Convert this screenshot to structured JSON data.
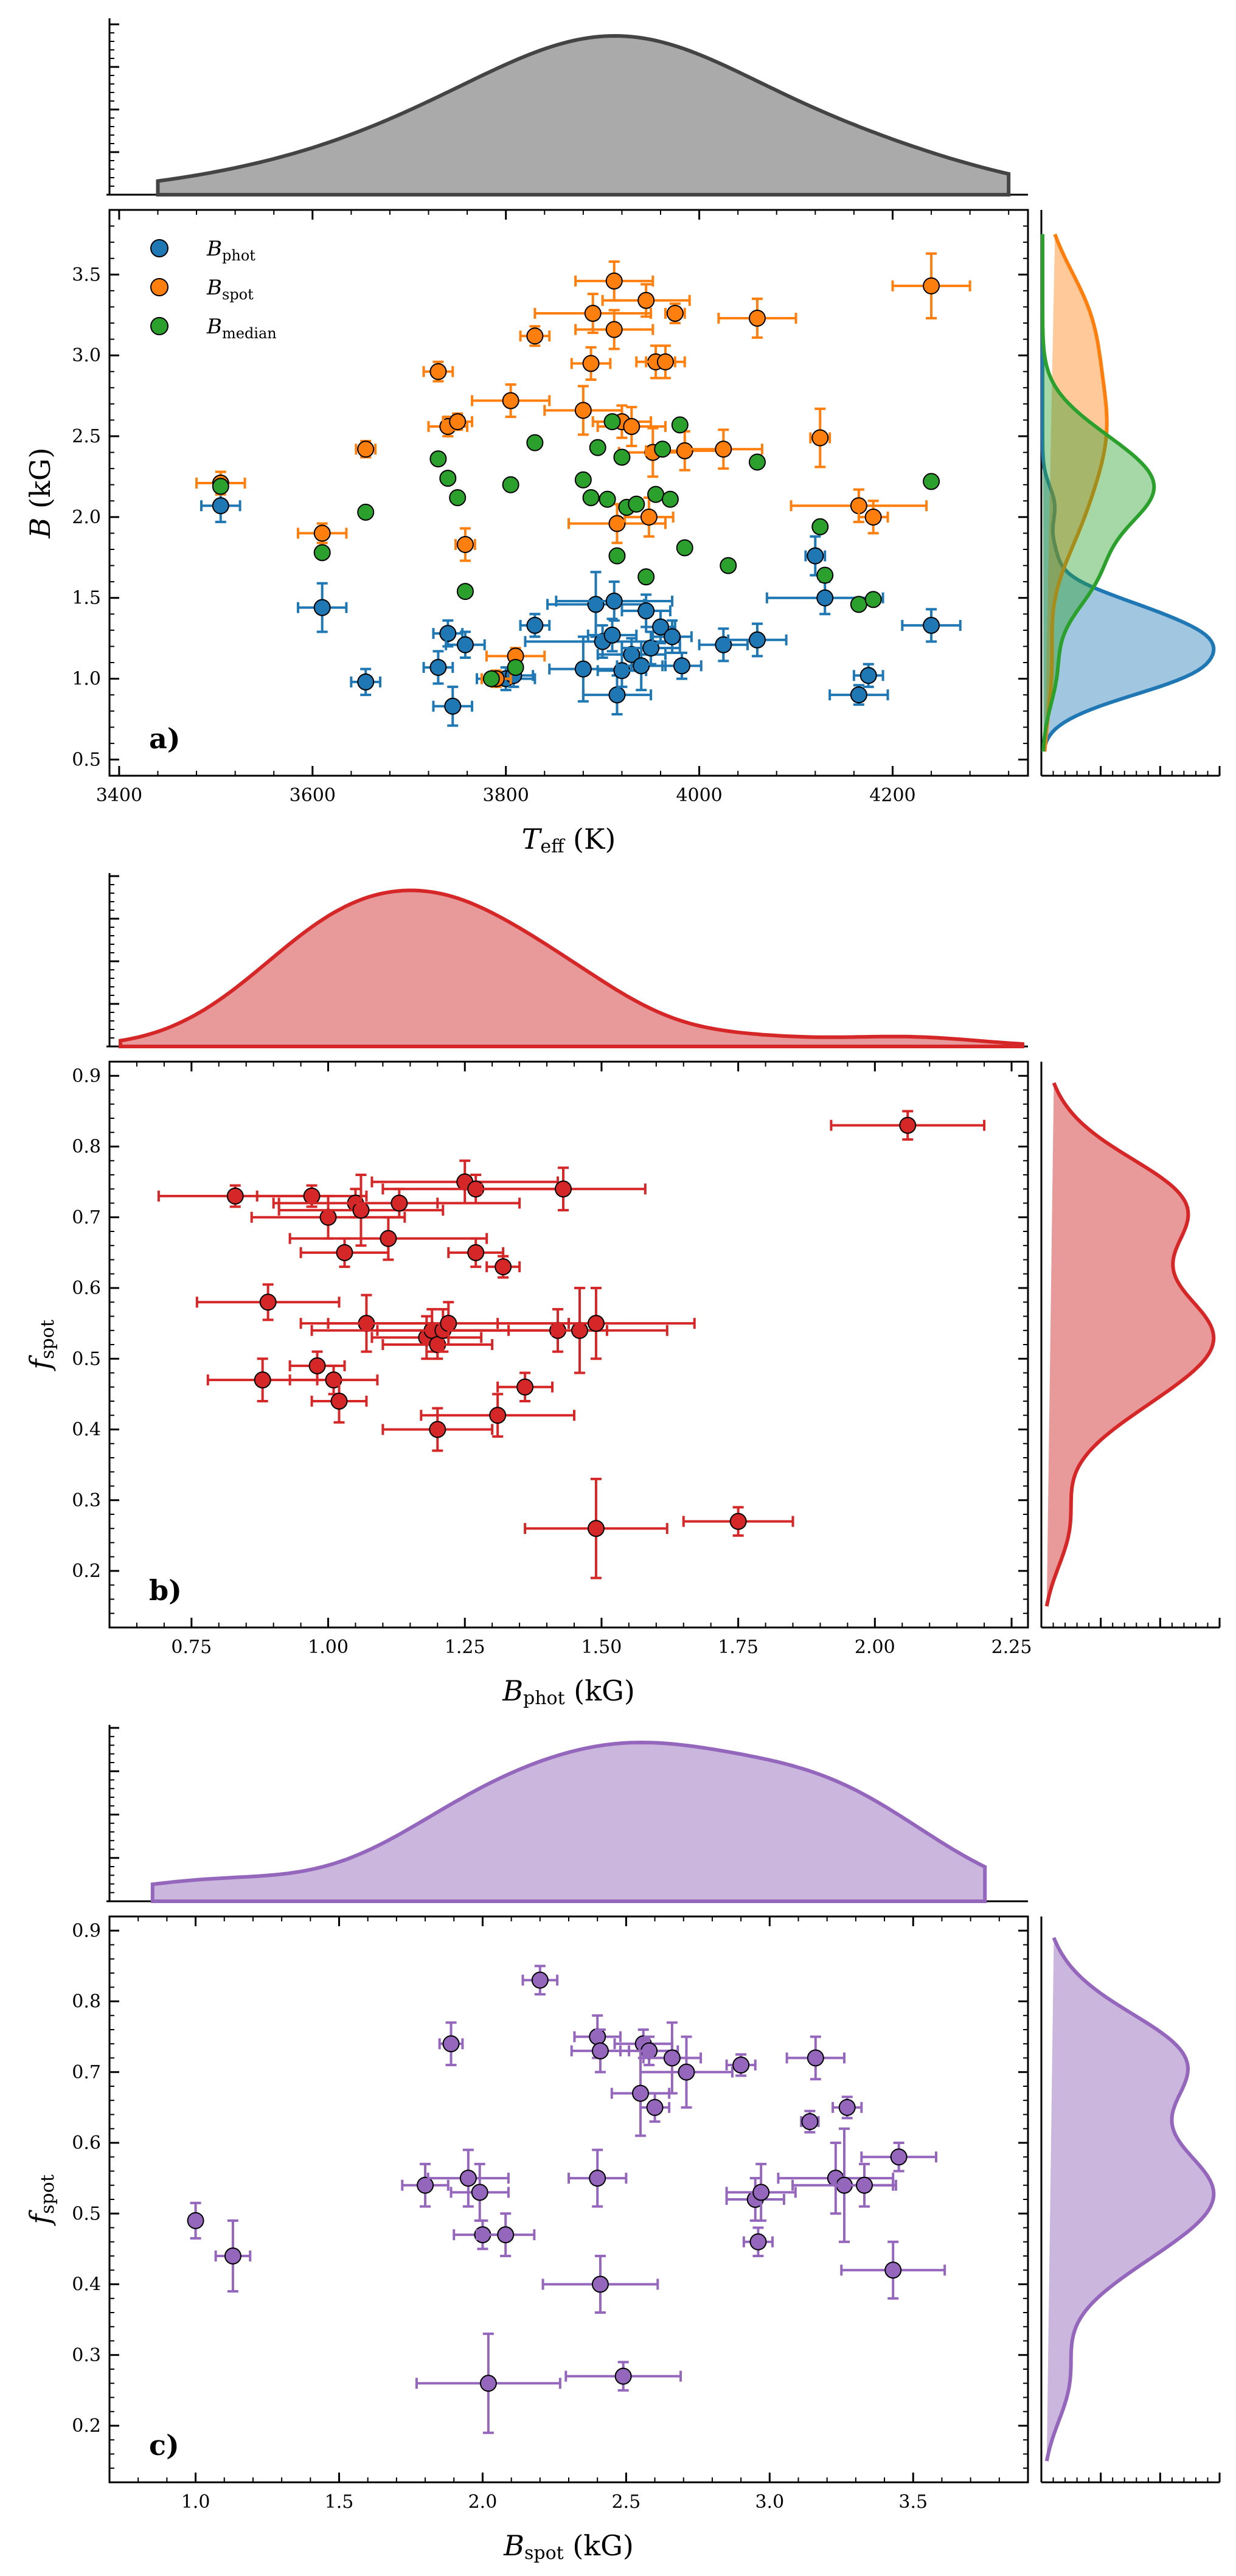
{
  "colors": {
    "phot": "#1f77b4",
    "spot": "#ff7f0e",
    "median": "#2ca02c",
    "red": "#d62728",
    "purple": "#9467bd",
    "grey": "#555555"
  },
  "chart_data": [
    {
      "id": "a",
      "type": "scatter",
      "panel_label": "a)",
      "xlabel": "T_eff (K)",
      "xlabel_main": "T",
      "xlabel_sub": "eff",
      "xlabel_unit": " (K)",
      "ylabel": "B (kG)",
      "ylabel_main": "B",
      "ylabel_unit": " (kG)",
      "xlim": [
        3390,
        4340
      ],
      "ylim": [
        0.4,
        3.9
      ],
      "xticks": [
        3400,
        3600,
        3800,
        4000,
        4200
      ],
      "yticks": [
        0.5,
        1.0,
        1.5,
        2.0,
        2.5,
        3.0,
        3.5
      ],
      "xtick_labels": [
        "3400",
        "3600",
        "3800",
        "4000",
        "4200"
      ],
      "ytick_labels": [
        "0.5",
        "1.0",
        "1.5",
        "2.0",
        "2.5",
        "3.0",
        "3.5"
      ],
      "legend": [
        {
          "main": "B",
          "sub": "phot",
          "color": "#1f77b4"
        },
        {
          "main": "B",
          "sub": "spot",
          "color": "#ff7f0e"
        },
        {
          "main": "B",
          "sub": "median",
          "color": "#2ca02c"
        }
      ],
      "series": [
        {
          "name": "B_phot",
          "color": "#1f77b4",
          "points": [
            [
              3505,
              2.07,
              20,
              0.1
            ],
            [
              3610,
              1.44,
              25,
              0.15
            ],
            [
              3655,
              0.98,
              15,
              0.08
            ],
            [
              3730,
              1.07,
              15,
              0.1
            ],
            [
              3740,
              1.28,
              15,
              0.08
            ],
            [
              3745,
              0.83,
              20,
              0.12
            ],
            [
              3758,
              1.21,
              20,
              0.08
            ],
            [
              3800,
              1.0,
              30,
              0.07
            ],
            [
              3808,
              1.02,
              20,
              0.07
            ],
            [
              3830,
              1.33,
              15,
              0.07
            ],
            [
              3880,
              1.06,
              35,
              0.2
            ],
            [
              3893,
              1.46,
              50,
              0.2
            ],
            [
              3900,
              1.23,
              80,
              0.1
            ],
            [
              3910,
              1.27,
              25,
              0.1
            ],
            [
              3912,
              1.48,
              60,
              0.12
            ],
            [
              3915,
              0.9,
              35,
              0.12
            ],
            [
              3920,
              1.05,
              25,
              0.1
            ],
            [
              3930,
              1.15,
              35,
              0.1
            ],
            [
              3940,
              1.08,
              25,
              0.15
            ],
            [
              3945,
              1.42,
              25,
              0.1
            ],
            [
              3950,
              1.19,
              30,
              0.1
            ],
            [
              3960,
              1.32,
              15,
              0.1
            ],
            [
              3972,
              1.26,
              20,
              0.1
            ],
            [
              3982,
              1.08,
              20,
              0.08
            ],
            [
              4025,
              1.21,
              25,
              0.1
            ],
            [
              4060,
              1.24,
              30,
              0.1
            ],
            [
              4120,
              1.76,
              10,
              0.12
            ],
            [
              4130,
              1.5,
              60,
              0.1
            ],
            [
              4165,
              0.9,
              30,
              0.06
            ],
            [
              4175,
              1.02,
              15,
              0.07
            ],
            [
              4240,
              1.33,
              30,
              0.1
            ]
          ]
        },
        {
          "name": "B_spot",
          "color": "#ff7f0e",
          "points": [
            [
              3505,
              2.21,
              25,
              0.07
            ],
            [
              3610,
              1.9,
              25,
              0.06
            ],
            [
              3655,
              2.42,
              10,
              0.05
            ],
            [
              3730,
              2.9,
              15,
              0.06
            ],
            [
              3740,
              2.56,
              20,
              0.06
            ],
            [
              3750,
              2.59,
              15,
              0.05
            ],
            [
              3758,
              1.83,
              10,
              0.1
            ],
            [
              3790,
              1.0,
              15,
              0.05
            ],
            [
              3810,
              1.14,
              30,
              0.05
            ],
            [
              3805,
              2.72,
              40,
              0.1
            ],
            [
              3830,
              3.12,
              15,
              0.06
            ],
            [
              3880,
              2.66,
              40,
              0.15
            ],
            [
              3888,
              2.95,
              20,
              0.1
            ],
            [
              3890,
              3.26,
              60,
              0.12
            ],
            [
              3912,
              3.46,
              40,
              0.12
            ],
            [
              3912,
              3.16,
              40,
              0.12
            ],
            [
              3915,
              1.96,
              50,
              0.12
            ],
            [
              3920,
              2.59,
              30,
              0.1
            ],
            [
              3930,
              2.56,
              35,
              0.12
            ],
            [
              3945,
              3.34,
              45,
              0.1
            ],
            [
              3948,
              2.0,
              25,
              0.12
            ],
            [
              3952,
              2.4,
              35,
              0.15
            ],
            [
              3955,
              2.96,
              20,
              0.1
            ],
            [
              3965,
              2.96,
              20,
              0.1
            ],
            [
              3975,
              3.26,
              10,
              0.06
            ],
            [
              3985,
              2.41,
              40,
              0.12
            ],
            [
              4025,
              2.42,
              40,
              0.12
            ],
            [
              4060,
              3.23,
              40,
              0.12
            ],
            [
              4125,
              2.49,
              10,
              0.18
            ],
            [
              4165,
              2.07,
              70,
              0.1
            ],
            [
              4180,
              2.0,
              15,
              0.1
            ],
            [
              4240,
              3.43,
              40,
              0.2
            ]
          ]
        },
        {
          "name": "B_median",
          "color": "#2ca02c",
          "points": [
            [
              3505,
              2.19
            ],
            [
              3610,
              1.78
            ],
            [
              3655,
              2.03
            ],
            [
              3730,
              2.36
            ],
            [
              3740,
              2.24
            ],
            [
              3750,
              2.12
            ],
            [
              3758,
              1.54
            ],
            [
              3785,
              1.0
            ],
            [
              3805,
              2.2
            ],
            [
              3810,
              1.07
            ],
            [
              3830,
              2.46
            ],
            [
              3880,
              2.23
            ],
            [
              3888,
              2.12
            ],
            [
              3895,
              2.43
            ],
            [
              3905,
              2.11
            ],
            [
              3910,
              2.59
            ],
            [
              3915,
              1.76
            ],
            [
              3920,
              2.37
            ],
            [
              3925,
              2.06
            ],
            [
              3935,
              2.08
            ],
            [
              3945,
              1.63
            ],
            [
              3955,
              2.14
            ],
            [
              3962,
              2.42
            ],
            [
              3970,
              2.11
            ],
            [
              3980,
              2.57
            ],
            [
              3985,
              1.81
            ],
            [
              4030,
              1.7
            ],
            [
              4060,
              2.34
            ],
            [
              4125,
              1.94
            ],
            [
              4130,
              1.64
            ],
            [
              4165,
              1.46
            ],
            [
              4180,
              1.49
            ],
            [
              4240,
              2.22
            ]
          ]
        }
      ]
    },
    {
      "id": "b",
      "type": "scatter",
      "panel_label": "b)",
      "xlabel": "B_phot (kG)",
      "xlabel_main": "B",
      "xlabel_sub": "phot",
      "xlabel_unit": " (kG)",
      "ylabel": "f_spot",
      "ylabel_main": "f",
      "ylabel_sub": "spot",
      "xlim": [
        0.6,
        2.28
      ],
      "ylim": [
        0.12,
        0.92
      ],
      "xticks": [
        0.75,
        1.0,
        1.25,
        1.5,
        1.75,
        2.0,
        2.25
      ],
      "yticks": [
        0.2,
        0.3,
        0.4,
        0.5,
        0.6,
        0.7,
        0.8,
        0.9
      ],
      "xtick_labels": [
        "0.75",
        "1.00",
        "1.25",
        "1.50",
        "1.75",
        "2.00",
        "2.25"
      ],
      "ytick_labels": [
        "0.2",
        "0.3",
        "0.4",
        "0.5",
        "0.6",
        "0.7",
        "0.8",
        "0.9"
      ],
      "series": [
        {
          "name": "f_spot vs B_phot",
          "color": "#d62728",
          "points": [
            [
              2.06,
              0.83,
              0.14,
              0.02
            ],
            [
              0.83,
              0.73,
              0.14,
              0.015
            ],
            [
              0.97,
              0.73,
              0.1,
              0.015
            ],
            [
              1.0,
              0.7,
              0.14,
              0.03
            ],
            [
              1.05,
              0.72,
              0.15,
              0.02
            ],
            [
              1.06,
              0.71,
              0.15,
              0.05
            ],
            [
              1.13,
              0.72,
              0.22,
              0.02
            ],
            [
              1.25,
              0.75,
              0.17,
              0.03
            ],
            [
              1.27,
              0.74,
              0.17,
              0.02
            ],
            [
              1.43,
              0.74,
              0.15,
              0.03
            ],
            [
              1.03,
              0.65,
              0.08,
              0.02
            ],
            [
              1.11,
              0.67,
              0.18,
              0.03
            ],
            [
              1.27,
              0.65,
              0.05,
              0.02
            ],
            [
              1.32,
              0.63,
              0.03,
              0.015
            ],
            [
              0.89,
              0.58,
              0.13,
              0.025
            ],
            [
              1.07,
              0.55,
              0.12,
              0.04
            ],
            [
              1.18,
              0.53,
              0.1,
              0.03
            ],
            [
              1.19,
              0.54,
              0.22,
              0.03
            ],
            [
              1.2,
              0.52,
              0.1,
              0.02
            ],
            [
              1.21,
              0.54,
              0.12,
              0.03
            ],
            [
              1.22,
              0.55,
              0.22,
              0.03
            ],
            [
              1.42,
              0.54,
              0.2,
              0.03
            ],
            [
              1.46,
              0.54,
              0.05,
              0.06
            ],
            [
              1.49,
              0.55,
              0.18,
              0.05
            ],
            [
              0.88,
              0.47,
              0.1,
              0.03
            ],
            [
              0.98,
              0.49,
              0.05,
              0.02
            ],
            [
              1.01,
              0.47,
              0.08,
              0.02
            ],
            [
              1.02,
              0.44,
              0.05,
              0.03
            ],
            [
              1.2,
              0.4,
              0.1,
              0.03
            ],
            [
              1.31,
              0.42,
              0.14,
              0.03
            ],
            [
              1.36,
              0.46,
              0.05,
              0.02
            ],
            [
              1.49,
              0.26,
              0.13,
              0.07
            ],
            [
              1.75,
              0.27,
              0.1,
              0.02
            ]
          ]
        }
      ]
    },
    {
      "id": "c",
      "type": "scatter",
      "panel_label": "c)",
      "xlabel": "B_spot (kG)",
      "xlabel_main": "B",
      "xlabel_sub": "spot",
      "xlabel_unit": " (kG)",
      "ylabel": "f_spot",
      "ylabel_main": "f",
      "ylabel_sub": "spot",
      "xlim": [
        0.7,
        3.9
      ],
      "ylim": [
        0.12,
        0.92
      ],
      "xticks": [
        1.0,
        1.5,
        2.0,
        2.5,
        3.0,
        3.5
      ],
      "yticks": [
        0.2,
        0.3,
        0.4,
        0.5,
        0.6,
        0.7,
        0.8,
        0.9
      ],
      "xtick_labels": [
        "1.0",
        "1.5",
        "2.0",
        "2.5",
        "3.0",
        "3.5"
      ],
      "ytick_labels": [
        "0.2",
        "0.3",
        "0.4",
        "0.5",
        "0.6",
        "0.7",
        "0.8",
        "0.9"
      ],
      "series": [
        {
          "name": "f_spot vs B_spot",
          "color": "#9467bd",
          "points": [
            [
              2.2,
              0.83,
              0.06,
              0.02
            ],
            [
              1.89,
              0.74,
              0.04,
              0.03
            ],
            [
              2.4,
              0.75,
              0.08,
              0.03
            ],
            [
              2.41,
              0.73,
              0.1,
              0.03
            ],
            [
              2.56,
              0.74,
              0.1,
              0.02
            ],
            [
              2.58,
              0.73,
              0.1,
              0.02
            ],
            [
              2.66,
              0.72,
              0.1,
              0.05
            ],
            [
              2.71,
              0.7,
              0.16,
              0.05
            ],
            [
              2.9,
              0.71,
              0.05,
              0.015
            ],
            [
              3.16,
              0.72,
              0.1,
              0.03
            ],
            [
              2.55,
              0.67,
              0.1,
              0.06
            ],
            [
              2.6,
              0.65,
              0.05,
              0.02
            ],
            [
              3.14,
              0.63,
              0.03,
              0.015
            ],
            [
              3.27,
              0.65,
              0.05,
              0.015
            ],
            [
              3.45,
              0.58,
              0.13,
              0.02
            ],
            [
              1.8,
              0.54,
              0.08,
              0.03
            ],
            [
              1.95,
              0.55,
              0.14,
              0.04
            ],
            [
              1.99,
              0.53,
              0.1,
              0.04
            ],
            [
              2.4,
              0.55,
              0.1,
              0.04
            ],
            [
              2.95,
              0.52,
              0.1,
              0.03
            ],
            [
              2.97,
              0.53,
              0.12,
              0.04
            ],
            [
              3.23,
              0.55,
              0.2,
              0.05
            ],
            [
              3.26,
              0.54,
              0.18,
              0.08
            ],
            [
              3.33,
              0.54,
              0.1,
              0.03
            ],
            [
              1.0,
              0.49,
              0.02,
              0.025
            ],
            [
              1.13,
              0.44,
              0.06,
              0.05
            ],
            [
              2.0,
              0.47,
              0.1,
              0.02
            ],
            [
              2.08,
              0.47,
              0.1,
              0.03
            ],
            [
              2.96,
              0.46,
              0.05,
              0.02
            ],
            [
              3.43,
              0.42,
              0.18,
              0.04
            ],
            [
              2.41,
              0.4,
              0.2,
              0.04
            ],
            [
              2.02,
              0.26,
              0.25,
              0.07
            ],
            [
              2.49,
              0.27,
              0.2,
              0.02
            ]
          ]
        }
      ]
    }
  ]
}
